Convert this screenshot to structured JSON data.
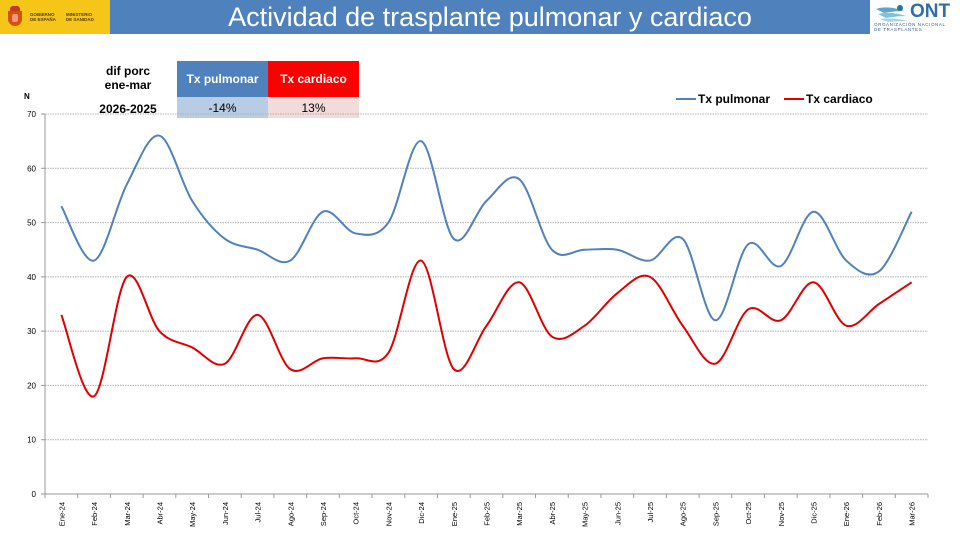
{
  "header": {
    "title": "Actividad de trasplante pulmonar y cardiaco",
    "gov_logo": {
      "line1": "GOBIERNO",
      "line2": "DE ESPAÑA",
      "line3": "MINISTERIO",
      "line4": "DE SANIDAD"
    },
    "ont_logo": {
      "word": "ONT",
      "sub1": "ORGANIZACIÓN NACIONAL",
      "sub2": "DE TRASPLANTES"
    }
  },
  "diff_box": {
    "label_line1": "dif porc",
    "label_line2": "ene-mar",
    "label_period": "2026-2025",
    "columns": [
      {
        "name": "Tx pulmonar",
        "value": "-14%"
      },
      {
        "name": "Tx cardiaco",
        "value": "13%"
      }
    ]
  },
  "colors": {
    "pulmonar": "#4f81bd",
    "cardiaco": "#e00000",
    "title_bar": "#4f81bd"
  },
  "chart_data": {
    "type": "line",
    "title": "Actividad de trasplante pulmonar y cardiaco",
    "ylabel": "N",
    "xlabel": "",
    "ylim": [
      0,
      70
    ],
    "yticks": [
      0,
      10,
      20,
      30,
      40,
      50,
      60,
      70
    ],
    "grid": true,
    "smooth": true,
    "legend_position": "top-right",
    "categories": [
      "Ene-24",
      "Feb-24",
      "Mar-24",
      "Abr-24",
      "May-24",
      "Jun-24",
      "Jul-24",
      "Ago-24",
      "Sep-24",
      "Oct-24",
      "Nov-24",
      "Dic-24",
      "Ene-25",
      "Feb-25",
      "Mar-25",
      "Abr-25",
      "May-25",
      "Jun-25",
      "Jul-25",
      "Ago-25",
      "Sep-25",
      "Oct-25",
      "Nov-25",
      "Dic-25",
      "Ene-26",
      "Feb-26",
      "Mar-26"
    ],
    "series": [
      {
        "name": "Tx pulmonar",
        "color": "#4f81bd",
        "values": [
          53,
          43,
          57,
          66,
          54,
          47,
          45,
          43,
          52,
          48,
          50,
          65,
          47,
          54,
          58,
          45,
          45,
          45,
          43,
          47,
          32,
          46,
          42,
          52,
          43,
          41,
          52
        ]
      },
      {
        "name": "Tx cardiaco",
        "color": "#e00000",
        "values": [
          33,
          18,
          40,
          30,
          27,
          24,
          33,
          23,
          25,
          25,
          26,
          43,
          23,
          31,
          39,
          29,
          31,
          37,
          40,
          31,
          24,
          34,
          32,
          39,
          31,
          35,
          39
        ]
      }
    ]
  }
}
